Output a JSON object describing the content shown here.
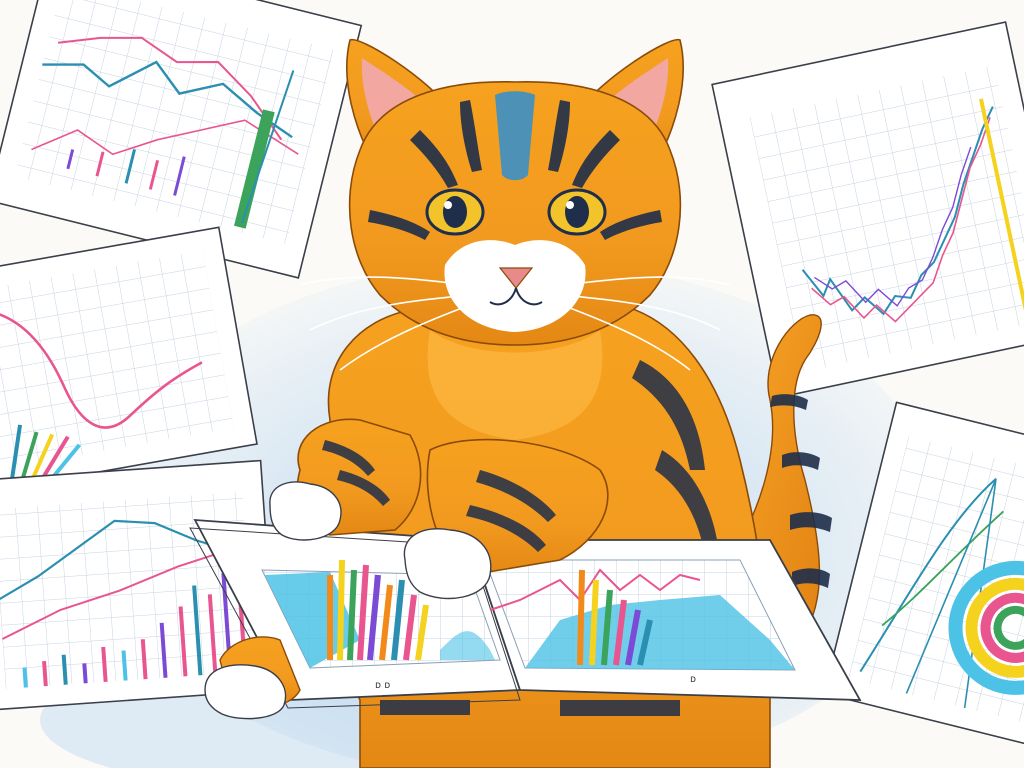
{
  "scene": {
    "description_hidden": false,
    "palette": {
      "background": "#fbfaf7",
      "paper": "#ffffff",
      "paper_line": "#3a3f4a",
      "grid": "#b9c6d6",
      "watercolor_blue": "#a8cdee",
      "cat_orange": "#f29a1f",
      "cat_light": "#ffc04a",
      "cat_stripe": "#1f2e4a",
      "cat_blue_patch": "#2f8fd1",
      "ear_pink": "#f2a7a0",
      "nose_pink": "#e98a8a",
      "eye_yellow": "#f2c32a",
      "white_fur": "#ffffff",
      "chart_pink": "#e8558f",
      "chart_teal": "#2a8fb0",
      "chart_green": "#3ba35a",
      "chart_orange": "#f28a1b",
      "chart_yellow": "#f4d21e",
      "chart_purple": "#7c4bd6",
      "chart_cyan": "#4cc2e6"
    },
    "elements": {
      "subject": "orange-tabby-cat",
      "props": [
        "chart-sheet-top-left",
        "chart-sheet-left",
        "chart-sheet-bottom-left",
        "chart-sheet-top-right",
        "chart-sheet-right",
        "chart-booklet-center"
      ]
    }
  },
  "sheet_labels": {
    "center_left_scribble": "ᴅ ᴅ",
    "center_right_scribble": "ᴅ"
  }
}
